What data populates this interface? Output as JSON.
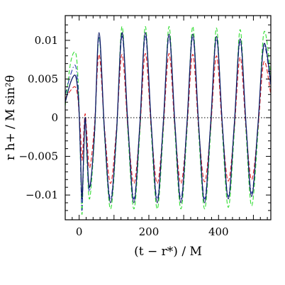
{
  "chart_data": {
    "type": "line",
    "xlabel": "(t − r*) / M",
    "ylabel": "r h+ / M sin²θ",
    "xlim": [
      -40,
      550
    ],
    "ylim": [
      -0.0132,
      0.0132
    ],
    "xticks": [
      {
        "value": 0,
        "label": "0"
      },
      {
        "value": 200,
        "label": "200"
      },
      {
        "value": 400,
        "label": "400"
      }
    ],
    "yticks": [
      {
        "value": -0.01,
        "label": "−0.01"
      },
      {
        "value": -0.005,
        "label": "−0.005"
      },
      {
        "value": 0,
        "label": "0"
      },
      {
        "value": 0.005,
        "label": "0.005"
      },
      {
        "value": 0.01,
        "label": "0.01"
      }
    ],
    "zero_line": true,
    "colors": {
      "blue_dashdot": "#2233aa",
      "navy_solid": "#0d1a66",
      "red_dashed": "#dd2222",
      "green_dashed": "#33dd33",
      "axis": "#000000"
    },
    "series": [
      {
        "style": "solid",
        "color": "#0d1a66",
        "points": [
          [
            -40,
            0.002
          ],
          [
            -25,
            0.0045
          ],
          [
            -12,
            0.0055
          ],
          [
            -5,
            0.004
          ],
          [
            0,
            0.0005
          ],
          [
            4,
            -0.005
          ],
          [
            8,
            -0.0105
          ],
          [
            12,
            -0.006
          ],
          [
            17,
            0.0
          ],
          [
            22,
            -0.004
          ],
          [
            30,
            -0.009
          ],
          [
            44,
            -0.002
          ],
          [
            57,
            0.011
          ],
          [
            73,
            -0.002
          ],
          [
            90,
            -0.011
          ],
          [
            107,
            -0.002
          ],
          [
            123,
            0.011
          ],
          [
            140,
            -0.001
          ],
          [
            157,
            -0.011
          ],
          [
            174,
            -0.001
          ],
          [
            190,
            0.011
          ],
          [
            207,
            -0.001
          ],
          [
            224,
            -0.011
          ],
          [
            241,
            -0.001
          ],
          [
            258,
            0.0108
          ],
          [
            275,
            -0.001
          ],
          [
            292,
            -0.011
          ],
          [
            309,
            -0.001
          ],
          [
            326,
            0.0108
          ],
          [
            343,
            -0.001
          ],
          [
            360,
            -0.011
          ],
          [
            377,
            -0.001
          ],
          [
            394,
            0.0105
          ],
          [
            411,
            -0.001
          ],
          [
            428,
            -0.0105
          ],
          [
            445,
            -0.001
          ],
          [
            462,
            0.0102
          ],
          [
            479,
            -0.001
          ],
          [
            495,
            -0.0102
          ],
          [
            513,
            -0.001
          ],
          [
            530,
            0.0095
          ],
          [
            550,
            0.0045
          ]
        ]
      },
      {
        "style": "dashdot",
        "color": "#2233aa",
        "points": [
          [
            -40,
            0.003
          ],
          [
            -25,
            0.0055
          ],
          [
            -12,
            0.0068
          ],
          [
            -5,
            0.005
          ],
          [
            0,
            0.001
          ],
          [
            4,
            -0.006
          ],
          [
            8,
            -0.012
          ],
          [
            12,
            -0.0065
          ],
          [
            17,
            0.0
          ],
          [
            22,
            -0.0045
          ],
          [
            30,
            -0.0095
          ],
          [
            44,
            -0.002
          ],
          [
            57,
            0.0105
          ],
          [
            73,
            -0.002
          ],
          [
            90,
            -0.0105
          ],
          [
            107,
            -0.002
          ],
          [
            123,
            0.0105
          ],
          [
            140,
            -0.001
          ],
          [
            157,
            -0.0105
          ],
          [
            174,
            -0.001
          ],
          [
            190,
            0.0105
          ],
          [
            207,
            -0.001
          ],
          [
            224,
            -0.0105
          ],
          [
            241,
            -0.001
          ],
          [
            258,
            0.0105
          ],
          [
            275,
            -0.001
          ],
          [
            292,
            -0.0105
          ],
          [
            309,
            -0.001
          ],
          [
            326,
            0.0104
          ],
          [
            343,
            -0.001
          ],
          [
            360,
            -0.0105
          ],
          [
            377,
            -0.001
          ],
          [
            394,
            0.0102
          ],
          [
            411,
            -0.001
          ],
          [
            428,
            -0.0102
          ],
          [
            445,
            -0.001
          ],
          [
            462,
            0.0098
          ],
          [
            479,
            -0.001
          ],
          [
            495,
            -0.0098
          ],
          [
            513,
            -0.001
          ],
          [
            530,
            0.0092
          ],
          [
            550,
            0.004
          ]
        ]
      },
      {
        "style": "dashed",
        "color": "#dd2222",
        "points": [
          [
            -40,
            0.0025
          ],
          [
            -25,
            0.0035
          ],
          [
            -12,
            0.004
          ],
          [
            -5,
            0.003
          ],
          [
            0,
            0.0005
          ],
          [
            4,
            -0.002
          ],
          [
            8,
            -0.0055
          ],
          [
            12,
            -0.003
          ],
          [
            17,
            0.0005
          ],
          [
            22,
            -0.002
          ],
          [
            30,
            -0.0065
          ],
          [
            44,
            -0.001
          ],
          [
            57,
            0.0082
          ],
          [
            73,
            -0.0015
          ],
          [
            90,
            -0.0085
          ],
          [
            107,
            -0.0015
          ],
          [
            123,
            0.0082
          ],
          [
            140,
            -0.0015
          ],
          [
            157,
            -0.0085
          ],
          [
            174,
            -0.0015
          ],
          [
            190,
            0.0083
          ],
          [
            207,
            -0.0015
          ],
          [
            224,
            -0.0085
          ],
          [
            241,
            -0.0015
          ],
          [
            258,
            0.0083
          ],
          [
            275,
            -0.0015
          ],
          [
            292,
            -0.0085
          ],
          [
            309,
            -0.0015
          ],
          [
            326,
            0.0082
          ],
          [
            343,
            -0.0015
          ],
          [
            360,
            -0.0083
          ],
          [
            377,
            -0.0015
          ],
          [
            394,
            0.008
          ],
          [
            411,
            -0.0015
          ],
          [
            428,
            -0.0082
          ],
          [
            445,
            -0.0015
          ],
          [
            462,
            0.0078
          ],
          [
            479,
            -0.0015
          ],
          [
            495,
            -0.008
          ],
          [
            513,
            -0.0015
          ],
          [
            530,
            0.0072
          ],
          [
            550,
            0.003
          ]
        ]
      },
      {
        "style": "dashed",
        "color": "#33dd33",
        "points": [
          [
            -40,
            0.0015
          ],
          [
            -25,
            0.007
          ],
          [
            -12,
            0.0085
          ],
          [
            -5,
            0.0065
          ],
          [
            0,
            0.001
          ],
          [
            4,
            -0.006
          ],
          [
            8,
            -0.0125
          ],
          [
            12,
            -0.007
          ],
          [
            17,
            0.0
          ],
          [
            22,
            -0.005
          ],
          [
            30,
            -0.0105
          ],
          [
            44,
            -0.0025
          ],
          [
            57,
            0.0105
          ],
          [
            73,
            -0.0025
          ],
          [
            90,
            -0.0118
          ],
          [
            107,
            -0.0025
          ],
          [
            123,
            0.0118
          ],
          [
            140,
            -0.002
          ],
          [
            157,
            -0.0118
          ],
          [
            174,
            -0.002
          ],
          [
            190,
            0.0118
          ],
          [
            207,
            -0.002
          ],
          [
            224,
            -0.0118
          ],
          [
            241,
            -0.002
          ],
          [
            258,
            0.0118
          ],
          [
            275,
            -0.002
          ],
          [
            292,
            -0.0118
          ],
          [
            309,
            -0.002
          ],
          [
            326,
            0.0118
          ],
          [
            343,
            -0.002
          ],
          [
            360,
            -0.0118
          ],
          [
            377,
            -0.002
          ],
          [
            394,
            0.0116
          ],
          [
            411,
            -0.002
          ],
          [
            428,
            -0.0116
          ],
          [
            445,
            -0.002
          ],
          [
            462,
            0.0114
          ],
          [
            479,
            -0.002
          ],
          [
            495,
            -0.0114
          ],
          [
            513,
            -0.002
          ],
          [
            530,
            0.011
          ],
          [
            550,
            0.0055
          ]
        ]
      }
    ]
  }
}
